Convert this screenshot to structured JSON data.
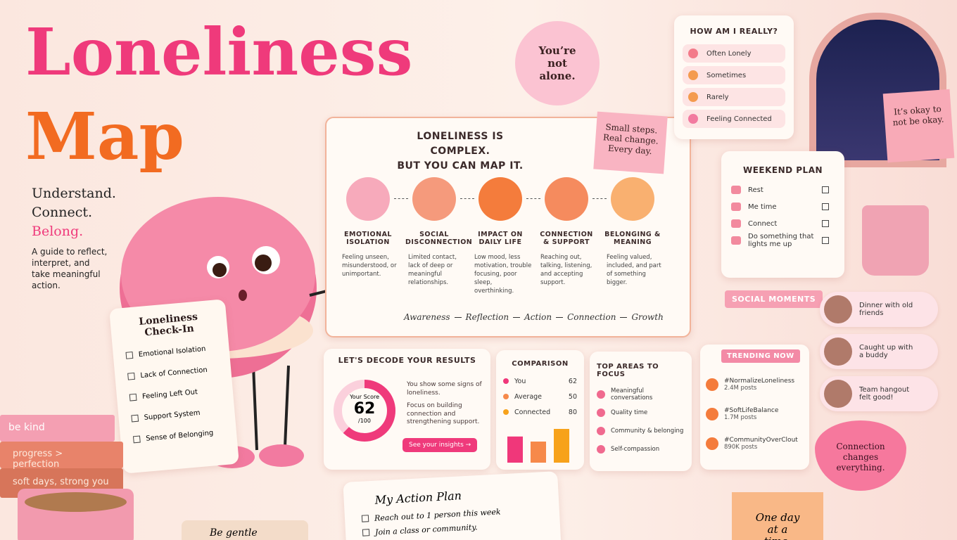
{
  "title": {
    "line1": "Loneliness",
    "line2": "Map"
  },
  "tagline": [
    "Understand.",
    "Connect.",
    "Belong."
  ],
  "intro": "A guide to reflect, interpret, and take meaningful action.",
  "sticker": "You’re not alone.",
  "checkin": {
    "title": "Loneliness Check-In",
    "items": [
      "Emotional Isolation",
      "Lack of Connection",
      "Feeling Left Out",
      "Support System",
      "Sense of Belonging"
    ]
  },
  "books": [
    "be kind",
    "progress > perfection",
    "soft days, strong you"
  ],
  "map": {
    "heading": [
      "LONELINESS IS COMPLEX.",
      "BUT YOU CAN MAP IT."
    ],
    "steps": [
      {
        "title": "EMOTIONAL ISOLATION",
        "text": "Feeling unseen, misunderstood, or unimportant."
      },
      {
        "title": "SOCIAL DISCONNECTION",
        "text": "Limited contact, lack of deep or meaningful relationships."
      },
      {
        "title": "IMPACT ON DAILY LIFE",
        "text": "Low mood, less motivation, trouble focusing, poor sleep, overthinking."
      },
      {
        "title": "CONNECTION & SUPPORT",
        "text": "Reaching out, talking, listening, and accepting support."
      },
      {
        "title": "BELONGING & MEANING",
        "text": "Feeling valued, included, and part of something bigger."
      }
    ],
    "flow": [
      "Awareness",
      "Reflection",
      "Action",
      "Connection",
      "Growth"
    ]
  },
  "small_steps": "Small steps. Real change. Every day.",
  "mood": {
    "title": "HOW AM I REALLY?",
    "options": [
      "Often Lonely",
      "Sometimes",
      "Rarely",
      "Feeling Connected"
    ]
  },
  "okay_note": "It’s okay to not be okay.",
  "weekend": {
    "title": "WEEKEND PLAN",
    "items": [
      "Rest",
      "Me time",
      "Connect",
      "Do something that lights me up"
    ]
  },
  "decode": {
    "title": "LET'S DECODE YOUR RESULTS",
    "score_label": "Your Score",
    "score": 62,
    "score_max": {
      "value": 100,
      "label": "/100"
    },
    "text1": "You show some signs of loneliness.",
    "text2": "Focus on building connection and strengthening support.",
    "button": "See your insights →"
  },
  "comparison": {
    "title": "COMPARISON",
    "categories": [
      "You",
      "Average",
      "Connected"
    ],
    "values": [
      62,
      50,
      80
    ],
    "colors": [
      "#f0377a",
      "#f6894a",
      "#f7a21b"
    ]
  },
  "focus": {
    "title": "TOP AREAS TO FOCUS",
    "items": [
      "Meaningful conversations",
      "Quality time",
      "Community & belonging",
      "Self-compassion"
    ]
  },
  "social": {
    "title": "SOCIAL MOMENTS",
    "items": [
      "Dinner with old friends",
      "Caught up with a buddy",
      "Team hangout felt good!"
    ]
  },
  "trending": {
    "title": "TRENDING NOW",
    "items": [
      {
        "tag": "#NormalizeLoneliness",
        "count": "2.4M posts"
      },
      {
        "tag": "#SoftLifeBalance",
        "count": "1.7M posts"
      },
      {
        "tag": "#CommunityOverClout",
        "count": "890K posts"
      }
    ]
  },
  "heart_note": "Connection changes everything.",
  "action_plan": {
    "title": "My Action Plan",
    "items": [
      "Reach out to 1 person this week",
      "Join a class or community."
    ]
  },
  "gentle": "Be gentle",
  "one_day": "One day at a time."
}
